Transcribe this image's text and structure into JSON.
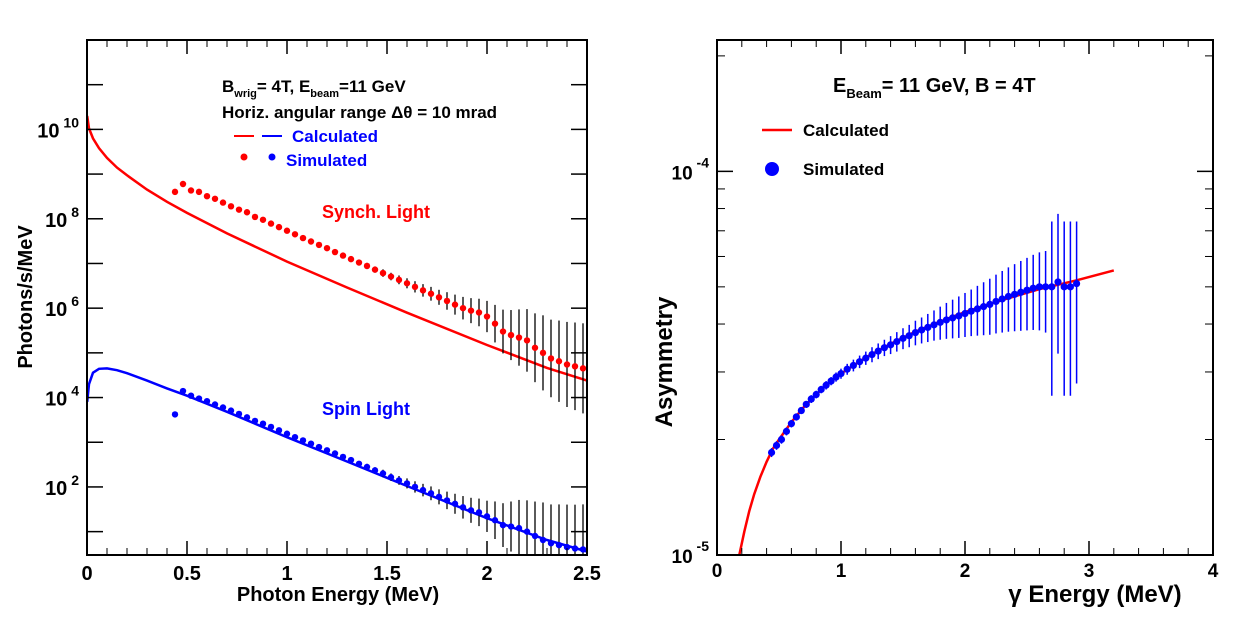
{
  "chart_data": [
    {
      "type": "scatter",
      "xlabel": "Photon Energy (MeV)",
      "ylabel": "Photons/s/MeV",
      "xlim": [
        0,
        2.5
      ],
      "ylim": [
        3,
        1000000000000.0
      ],
      "yscale": "log",
      "x_ticks": [
        "0",
        "0.5",
        "1",
        "1.5",
        "2",
        "2.5"
      ],
      "y_ticks": [
        {
          "base": "10",
          "exp": "2"
        },
        {
          "base": "10",
          "exp": "4"
        },
        {
          "base": "10",
          "exp": "6"
        },
        {
          "base": "10",
          "exp": "8"
        },
        {
          "base": "10",
          "exp": "10"
        }
      ],
      "y_tick_values": [
        100,
        10000,
        1000000,
        100000000,
        10000000000
      ],
      "annotations": {
        "line1_prefix": "B",
        "line1_sub1": "wrig",
        "line1_mid": "= 4T, E",
        "line1_sub2": "beam",
        "line1_suffix": "=11 GeV",
        "line2": "Horiz. angular range Δθ = 10 mrad",
        "synch_label": "Synch. Light",
        "spin_label": "Spin Light"
      },
      "legend": {
        "position": "top-right",
        "entries": [
          {
            "label": "Calculated",
            "marker": "line"
          },
          {
            "label": "Simulated",
            "marker": "dot"
          }
        ]
      },
      "colors": {
        "synch": "#ff0000",
        "spin": "#0000ff",
        "errors": "#000000"
      },
      "series": [
        {
          "name": "Synch. Light",
          "calculated": {
            "x": [
              0.001,
              0.01,
              0.03,
              0.06,
              0.1,
              0.15,
              0.2,
              0.3,
              0.4,
              0.5,
              0.7,
              1.0,
              1.3,
              1.6,
              2.0,
              2.3,
              2.5
            ],
            "y": [
              20000000000.0,
              10500000000.0,
              6300000000.0,
              3800000000.0,
              2300000000.0,
              1400000000.0,
              940000000.0,
              450000000.0,
              240000000.0,
              135000000.0,
              47000000.0,
              11000000.0,
              2900000.0,
              790000.0,
              150000.0,
              46000.0,
              24000.0
            ]
          },
          "simulated": {
            "x": [
              0.44,
              0.48,
              0.52,
              0.56,
              0.6,
              0.64,
              0.68,
              0.72,
              0.76,
              0.8,
              0.84,
              0.88,
              0.92,
              0.96,
              1.0,
              1.04,
              1.08,
              1.12,
              1.16,
              1.2,
              1.24,
              1.28,
              1.32,
              1.36,
              1.4,
              1.44,
              1.48,
              1.52,
              1.56,
              1.6,
              1.64,
              1.68,
              1.72,
              1.76,
              1.8,
              1.84,
              1.88,
              1.92,
              1.96,
              2.0,
              2.04,
              2.08,
              2.12,
              2.16,
              2.2,
              2.24,
              2.28,
              2.32,
              2.36,
              2.4,
              2.44,
              2.48
            ],
            "y": [
              400000000.0,
              600000000.0,
              430000000.0,
              400000000.0,
              320000000.0,
              280000000.0,
              230000000.0,
              190000000.0,
              160000000.0,
              140000000.0,
              110000000.0,
              95000000.0,
              78000000.0,
              65000000.0,
              54000000.0,
              45000000.0,
              37000000.0,
              31000000.0,
              26000000.0,
              22000000.0,
              18000000.0,
              15000000.0,
              12500000.0,
              10500000.0,
              8800000.0,
              7300000.0,
              6100000.0,
              5100000.0,
              4300000.0,
              3600000.0,
              3000000.0,
              2500000.0,
              2100000.0,
              1750000.0,
              1450000.0,
              1200000.0,
              1000000.0,
              880000.0,
              800000.0,
              650000.0,
              450000.0,
              300000.0,
              250000.0,
              220000.0,
              190000.0,
              130000.0,
              100000.0,
              75000.0,
              65000.0,
              55000.0,
              50000.0,
              45000.0
            ],
            "err_low": [
              0.02,
              0.02,
              0.02,
              0.02,
              0.02,
              0.02,
              0.02,
              0.02,
              0.02,
              0.02,
              0.02,
              0.02,
              0.02,
              0.02,
              0.03,
              0.03,
              0.03,
              0.03,
              0.03,
              0.03,
              0.03,
              0.04,
              0.04,
              0.04,
              0.05,
              0.05,
              0.06,
              0.06,
              0.07,
              0.08,
              0.09,
              0.1,
              0.11,
              0.12,
              0.14,
              0.16,
              0.18,
              0.2,
              0.22,
              0.25,
              0.3,
              0.35,
              0.4,
              0.45,
              0.5,
              0.55,
              0.6,
              0.62,
              0.65,
              0.68,
              0.7,
              0.72
            ],
            "err_high": [
              0.02,
              0.02,
              0.02,
              0.02,
              0.02,
              0.02,
              0.02,
              0.02,
              0.02,
              0.02,
              0.02,
              0.02,
              0.02,
              0.02,
              0.03,
              0.03,
              0.03,
              0.03,
              0.03,
              0.03,
              0.03,
              0.04,
              0.04,
              0.04,
              0.05,
              0.05,
              0.06,
              0.06,
              0.07,
              0.08,
              0.09,
              0.1,
              0.11,
              0.12,
              0.14,
              0.16,
              0.18,
              0.2,
              0.22,
              0.25,
              0.3,
              0.35,
              0.4,
              0.45,
              0.5,
              0.55,
              0.6,
              0.62,
              0.65,
              0.68,
              0.7,
              0.72
            ]
          }
        },
        {
          "name": "Spin Light",
          "calculated": {
            "x": [
              0.001,
              0.01,
              0.03,
              0.06,
              0.1,
              0.15,
              0.2,
              0.3,
              0.4,
              0.5,
              0.7,
              1.0,
              1.3,
              1.6,
              2.0,
              2.3,
              2.5
            ],
            "y": [
              8000.0,
              20000.0,
              36000.0,
              44000.0,
              45000.0,
              41000.0,
              35000.0,
              24000.0,
              16000.0,
              11000.0,
              4800.0,
              1300.0,
              370,
              105,
              20,
              6.5,
              3.6
            ]
          },
          "simulated": {
            "x": [
              0.44,
              0.48,
              0.52,
              0.56,
              0.6,
              0.64,
              0.68,
              0.72,
              0.76,
              0.8,
              0.84,
              0.88,
              0.92,
              0.96,
              1.0,
              1.04,
              1.08,
              1.12,
              1.16,
              1.2,
              1.24,
              1.28,
              1.32,
              1.36,
              1.4,
              1.44,
              1.48,
              1.52,
              1.56,
              1.6,
              1.64,
              1.68,
              1.72,
              1.76,
              1.8,
              1.84,
              1.88,
              1.92,
              1.96,
              2.0,
              2.04,
              2.08,
              2.12,
              2.16,
              2.2,
              2.24,
              2.28,
              2.32,
              2.36,
              2.4,
              2.44,
              2.48
            ],
            "y": [
              4200.0,
              14000.0,
              11000.0,
              9500.0,
              8300.0,
              7000.0,
              6000.0,
              5100.0,
              4300.0,
              3600.0,
              3000.0,
              2600.0,
              2200.0,
              1850.0,
              1550.0,
              1300.0,
              1100.0,
              930,
              780,
              660,
              560,
              470,
              400,
              330,
              280,
              235,
              200,
              165,
              140,
              120,
              100,
              85,
              72,
              60,
              50,
              42,
              35,
              30,
              27,
              22,
              18,
              14,
              13,
              12,
              10,
              8,
              6.5,
              5.5,
              5.0,
              4.5,
              4.2,
              4.0
            ],
            "err_low": [
              0.02,
              0.02,
              0.02,
              0.02,
              0.02,
              0.02,
              0.02,
              0.02,
              0.02,
              0.02,
              0.02,
              0.02,
              0.02,
              0.02,
              0.03,
              0.03,
              0.03,
              0.03,
              0.03,
              0.03,
              0.03,
              0.04,
              0.04,
              0.04,
              0.05,
              0.05,
              0.06,
              0.06,
              0.07,
              0.08,
              0.09,
              0.1,
              0.11,
              0.12,
              0.14,
              0.16,
              0.18,
              0.2,
              0.22,
              0.25,
              0.3,
              0.35,
              0.4,
              0.45,
              0.5,
              0.55,
              0.6,
              0.62,
              0.65,
              0.68,
              0.7,
              0.72
            ],
            "err_high": [
              0.02,
              0.02,
              0.02,
              0.02,
              0.02,
              0.02,
              0.02,
              0.02,
              0.02,
              0.02,
              0.02,
              0.02,
              0.02,
              0.02,
              0.03,
              0.03,
              0.03,
              0.03,
              0.03,
              0.03,
              0.03,
              0.04,
              0.04,
              0.04,
              0.05,
              0.05,
              0.06,
              0.06,
              0.07,
              0.08,
              0.09,
              0.1,
              0.11,
              0.12,
              0.14,
              0.16,
              0.18,
              0.2,
              0.22,
              0.25,
              0.3,
              0.35,
              0.4,
              0.45,
              0.5,
              0.55,
              0.6,
              0.62,
              0.65,
              0.68,
              0.7,
              0.72
            ]
          }
        }
      ]
    },
    {
      "type": "scatter",
      "xlabel": "γ Energy (MeV)",
      "ylabel": "Asymmetry",
      "xlim": [
        0,
        4
      ],
      "ylim": [
        1e-05,
        0.00022
      ],
      "yscale": "log",
      "x_ticks": [
        "0",
        "1",
        "2",
        "3",
        "4"
      ],
      "y_ticks": [
        {
          "base": "10",
          "exp": "-5"
        },
        {
          "base": "10",
          "exp": "-4"
        }
      ],
      "y_tick_values": [
        1e-05,
        0.0001
      ],
      "annotations": {
        "title_prefix": "E",
        "title_sub": "Beam",
        "title_suffix": "= 11 GeV, B = 4T"
      },
      "legend": {
        "position": "top-left",
        "entries": [
          {
            "label": "Calculated",
            "marker": "line"
          },
          {
            "label": "Simulated",
            "marker": "dot"
          }
        ]
      },
      "colors": {
        "calculated": "#ff0000",
        "simulated": "#0000ff"
      },
      "series": [
        {
          "name": "Calculated",
          "x": [
            0.18,
            0.22,
            0.26,
            0.3,
            0.35,
            0.4,
            0.45,
            0.5,
            0.6,
            0.7,
            0.8,
            0.9,
            1.0,
            1.2,
            1.4,
            1.6,
            1.8,
            2.0,
            2.3,
            2.6,
            2.9,
            3.2
          ],
          "y": [
            1e-05,
            1.15e-05,
            1.3e-05,
            1.44e-05,
            1.6e-05,
            1.75e-05,
            1.89e-05,
            2e-05,
            2.22e-05,
            2.43e-05,
            2.62e-05,
            2.8e-05,
            2.97e-05,
            3.27e-05,
            3.55e-05,
            3.82e-05,
            4.06e-05,
            4.3e-05,
            4.62e-05,
            4.93e-05,
            5.2e-05,
            5.52e-05
          ]
        },
        {
          "name": "Simulated",
          "x": [
            0.44,
            0.48,
            0.52,
            0.56,
            0.6,
            0.64,
            0.68,
            0.72,
            0.76,
            0.8,
            0.84,
            0.88,
            0.92,
            0.96,
            1.0,
            1.05,
            1.1,
            1.15,
            1.2,
            1.25,
            1.3,
            1.35,
            1.4,
            1.45,
            1.5,
            1.55,
            1.6,
            1.65,
            1.7,
            1.75,
            1.8,
            1.85,
            1.9,
            1.95,
            2.0,
            2.05,
            2.1,
            2.15,
            2.2,
            2.25,
            2.3,
            2.35,
            2.4,
            2.45,
            2.5,
            2.55,
            2.6,
            2.65,
            2.7,
            2.75,
            2.8,
            2.85,
            2.9
          ],
          "y": [
            1.85e-05,
            1.93e-05,
            2e-05,
            2.1e-05,
            2.2e-05,
            2.29e-05,
            2.38e-05,
            2.47e-05,
            2.55e-05,
            2.62e-05,
            2.7e-05,
            2.77e-05,
            2.84e-05,
            2.91e-05,
            2.97e-05,
            3.05e-05,
            3.12e-05,
            3.19e-05,
            3.26e-05,
            3.33e-05,
            3.4e-05,
            3.47e-05,
            3.53e-05,
            3.6e-05,
            3.67e-05,
            3.73e-05,
            3.8e-05,
            3.86e-05,
            3.92e-05,
            3.98e-05,
            4.04e-05,
            4.1e-05,
            4.15e-05,
            4.2e-05,
            4.26e-05,
            4.32e-05,
            4.38e-05,
            4.44e-05,
            4.5e-05,
            4.58e-05,
            4.65e-05,
            4.72e-05,
            4.78e-05,
            4.84e-05,
            4.9e-05,
            4.96e-05,
            5e-05,
            5e-05,
            5e-05,
            5.15e-05,
            5e-05,
            5e-05,
            5.1e-05
          ],
          "err_low": [
            5e-07,
            5e-07,
            5e-07,
            5e-07,
            5e-07,
            5e-07,
            5e-07,
            5e-07,
            6e-07,
            6e-07,
            6e-07,
            7e-07,
            7e-07,
            8e-07,
            9e-07,
            1e-06,
            1.1e-06,
            1.2e-06,
            1.3e-06,
            1.5e-06,
            1.6e-06,
            1.7e-06,
            1.9e-06,
            2.1e-06,
            2.3e-06,
            2.5e-06,
            2.8e-06,
            3e-06,
            3.3e-06,
            3.6e-06,
            4e-06,
            4.4e-06,
            4.8e-06,
            5.2e-06,
            5.6e-06,
            6e-06,
            6.5e-06,
            7e-06,
            7.5e-06,
            8e-06,
            8.5e-06,
            9e-06,
            9.5e-06,
            1e-05,
            1.05e-05,
            1.1e-05,
            1.15e-05,
            1.2e-05,
            2.4e-05,
            1.8e-05,
            2.4e-05,
            2.4e-05,
            2.3e-05
          ],
          "err_high": [
            5e-07,
            5e-07,
            5e-07,
            5e-07,
            5e-07,
            5e-07,
            5e-07,
            5e-07,
            6e-07,
            6e-07,
            6e-07,
            7e-07,
            7e-07,
            8e-07,
            9e-07,
            1e-06,
            1.1e-06,
            1.2e-06,
            1.3e-06,
            1.5e-06,
            1.6e-06,
            1.7e-06,
            1.9e-06,
            2.1e-06,
            2.3e-06,
            2.5e-06,
            2.8e-06,
            3e-06,
            3.3e-06,
            3.6e-06,
            4e-06,
            4.4e-06,
            4.8e-06,
            5.2e-06,
            5.6e-06,
            6e-06,
            6.5e-06,
            7e-06,
            7.5e-06,
            8e-06,
            8.5e-06,
            9e-06,
            9.5e-06,
            1e-05,
            1.05e-05,
            1.1e-05,
            1.15e-05,
            1.2e-05,
            2.4e-05,
            2.6e-05,
            2.4e-05,
            2.4e-05,
            2.3e-05
          ]
        }
      ]
    }
  ]
}
